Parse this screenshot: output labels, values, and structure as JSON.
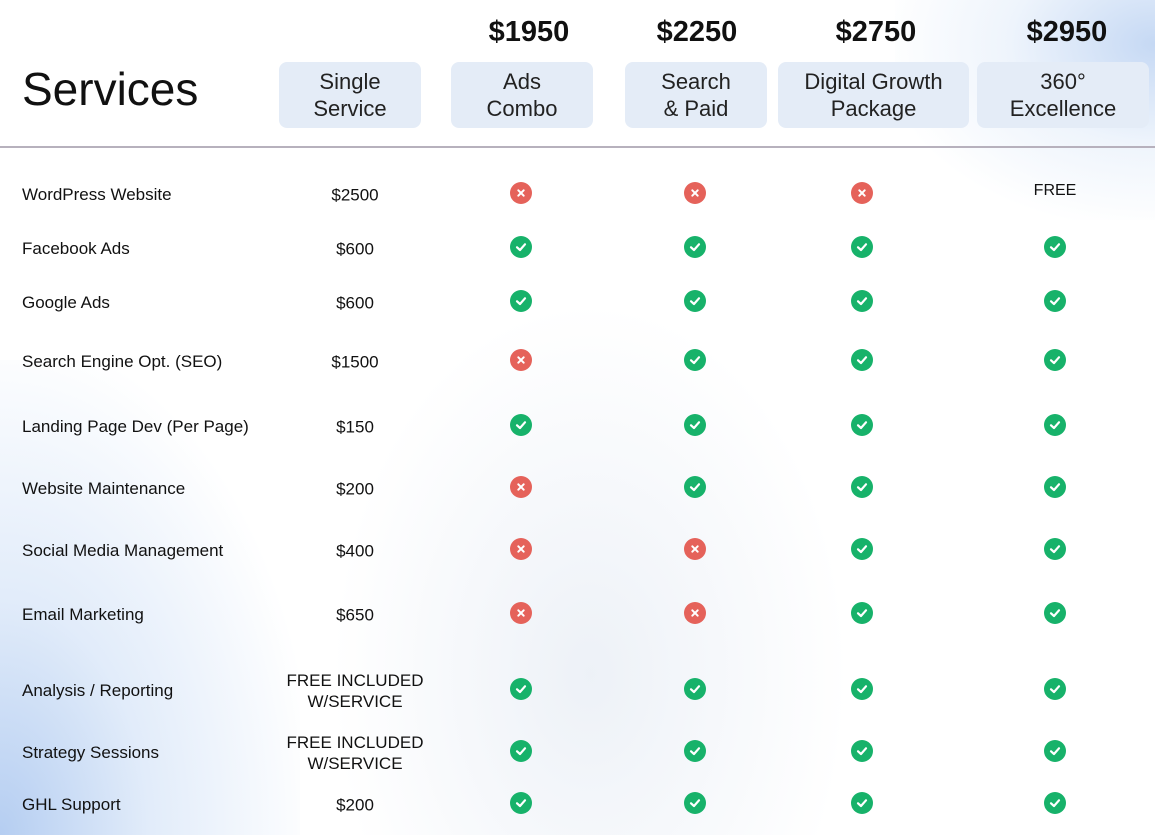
{
  "title": "Services",
  "colors": {
    "check": "#17b26a",
    "cross": "#e5625a",
    "header_bg": "#e4ecf7",
    "divider": "#b7b1bd"
  },
  "packages": [
    {
      "price": "",
      "name_line1": "Single",
      "name_line2": "Service"
    },
    {
      "price": "$1950",
      "name_line1": "Ads",
      "name_line2": "Combo"
    },
    {
      "price": "$2250",
      "name_line1": "Search",
      "name_line2": "& Paid"
    },
    {
      "price": "$2750",
      "name_line1": "Digital Growth",
      "name_line2": "Package"
    },
    {
      "price": "$2950",
      "name_line1": "360°",
      "name_line2": "Excellence"
    }
  ],
  "rows": [
    {
      "service": "WordPress Website",
      "single_price": "$2500",
      "price_line2": "",
      "cells": [
        "cross",
        "cross",
        "cross",
        "FREE"
      ]
    },
    {
      "service": "Facebook Ads",
      "single_price": "$600",
      "price_line2": "",
      "cells": [
        "check",
        "check",
        "check",
        "check"
      ]
    },
    {
      "service": "Google Ads",
      "single_price": "$600",
      "price_line2": "",
      "cells": [
        "check",
        "check",
        "check",
        "check"
      ]
    },
    {
      "service": "Search Engine Opt. (SEO)",
      "single_price": "$1500",
      "price_line2": "",
      "cells": [
        "cross",
        "check",
        "check",
        "check"
      ]
    },
    {
      "service": "Landing Page Dev (Per Page)",
      "single_price": "$150",
      "price_line2": "",
      "cells": [
        "check",
        "check",
        "check",
        "check"
      ]
    },
    {
      "service": "Website Maintenance",
      "single_price": "$200",
      "price_line2": "",
      "cells": [
        "cross",
        "check",
        "check",
        "check"
      ]
    },
    {
      "service": "Social Media Management",
      "single_price": "$400",
      "price_line2": "",
      "cells": [
        "cross",
        "cross",
        "check",
        "check"
      ]
    },
    {
      "service": "Email Marketing",
      "single_price": "$650",
      "price_line2": "",
      "cells": [
        "cross",
        "cross",
        "check",
        "check"
      ]
    },
    {
      "service": "Analysis / Reporting",
      "single_price": "FREE INCLUDED",
      "price_line2": "W/SERVICE",
      "cells": [
        "check",
        "check",
        "check",
        "check"
      ]
    },
    {
      "service": "Strategy Sessions",
      "single_price": "FREE INCLUDED",
      "price_line2": "W/SERVICE",
      "cells": [
        "check",
        "check",
        "check",
        "check"
      ]
    },
    {
      "service": "GHL Support",
      "single_price": "$200",
      "price_line2": "",
      "cells": [
        "check",
        "check",
        "check",
        "check"
      ]
    }
  ]
}
